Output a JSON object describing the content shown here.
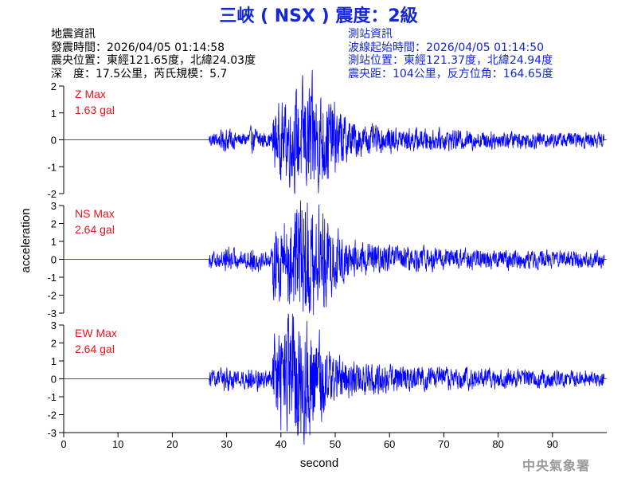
{
  "header": {
    "title": "三峽 ( NSX ) 震度：2級",
    "quake_info": [
      "地震資訊",
      "發震時間：2026/04/05 01:14:58",
      "震央位置：東經121.65度，北緯24.03度",
      "深　度：17.5公里，芮氏規模：5.7"
    ],
    "station_info": [
      "測站資訊",
      "波線起始時間：2026/04/05 01:14:50",
      "測站位置：東經121.37度，北緯24.94度",
      "震央距：104公里，反方位角：164.65度"
    ]
  },
  "watermark": "中央氣象署",
  "colors": {
    "title": "#1428d8",
    "trace": "#0000ff",
    "max_label": "#e8141b",
    "station_info": "#1428d8"
  },
  "chart_data": {
    "type": "line",
    "xlabel": "second",
    "ylabel": "acceleration",
    "xlim": [
      0,
      100
    ],
    "xticks": [
      0,
      10,
      20,
      30,
      40,
      50,
      60,
      70,
      80,
      90
    ],
    "series": [
      {
        "name": "Z",
        "max_label": "Z Max",
        "max_value": "1.63 gal",
        "ylim": [
          -2,
          2
        ],
        "yticks": [
          2,
          1,
          0,
          -1,
          -2
        ],
        "peak": 1.63,
        "onset": 26.8,
        "peak_time": 45.5
      },
      {
        "name": "NS",
        "max_label": "NS Max",
        "max_value": "2.64 gal",
        "ylim": [
          -3,
          3
        ],
        "yticks": [
          3,
          2,
          1,
          0,
          -1,
          -2,
          -3
        ],
        "peak": 2.64,
        "onset": 26.8,
        "peak_time": 44.5
      },
      {
        "name": "EW",
        "max_label": "EW Max",
        "max_value": "2.64 gal",
        "ylim": [
          -3,
          3
        ],
        "yticks": [
          3,
          2,
          1,
          0,
          -1,
          -2,
          -3
        ],
        "peak": 2.64,
        "onset": 26.8,
        "peak_time": 43.3
      }
    ]
  }
}
